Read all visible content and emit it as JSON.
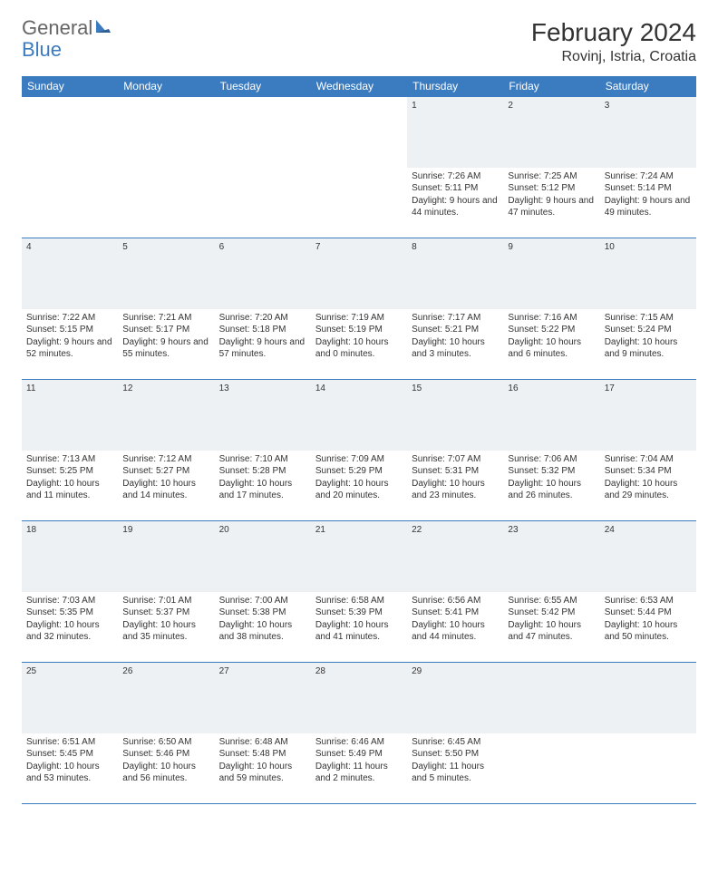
{
  "brand": {
    "word1": "General",
    "word2": "Blue"
  },
  "title": "February 2024",
  "location": "Rovinj, Istria, Croatia",
  "colors": {
    "header_bg": "#3b7bbf",
    "header_text": "#ffffff",
    "daynum_bg": "#eef1f4",
    "border": "#3b7bbf",
    "body_text": "#333333",
    "page_bg": "#ffffff"
  },
  "fonts": {
    "title_size": 28,
    "location_size": 16,
    "weekday_size": 12,
    "cell_size": 10
  },
  "weekdays": [
    "Sunday",
    "Monday",
    "Tuesday",
    "Wednesday",
    "Thursday",
    "Friday",
    "Saturday"
  ],
  "weeks": [
    [
      null,
      null,
      null,
      null,
      {
        "n": "1",
        "sunrise": "Sunrise: 7:26 AM",
        "sunset": "Sunset: 5:11 PM",
        "daylight": "Daylight: 9 hours and 44 minutes."
      },
      {
        "n": "2",
        "sunrise": "Sunrise: 7:25 AM",
        "sunset": "Sunset: 5:12 PM",
        "daylight": "Daylight: 9 hours and 47 minutes."
      },
      {
        "n": "3",
        "sunrise": "Sunrise: 7:24 AM",
        "sunset": "Sunset: 5:14 PM",
        "daylight": "Daylight: 9 hours and 49 minutes."
      }
    ],
    [
      {
        "n": "4",
        "sunrise": "Sunrise: 7:22 AM",
        "sunset": "Sunset: 5:15 PM",
        "daylight": "Daylight: 9 hours and 52 minutes."
      },
      {
        "n": "5",
        "sunrise": "Sunrise: 7:21 AM",
        "sunset": "Sunset: 5:17 PM",
        "daylight": "Daylight: 9 hours and 55 minutes."
      },
      {
        "n": "6",
        "sunrise": "Sunrise: 7:20 AM",
        "sunset": "Sunset: 5:18 PM",
        "daylight": "Daylight: 9 hours and 57 minutes."
      },
      {
        "n": "7",
        "sunrise": "Sunrise: 7:19 AM",
        "sunset": "Sunset: 5:19 PM",
        "daylight": "Daylight: 10 hours and 0 minutes."
      },
      {
        "n": "8",
        "sunrise": "Sunrise: 7:17 AM",
        "sunset": "Sunset: 5:21 PM",
        "daylight": "Daylight: 10 hours and 3 minutes."
      },
      {
        "n": "9",
        "sunrise": "Sunrise: 7:16 AM",
        "sunset": "Sunset: 5:22 PM",
        "daylight": "Daylight: 10 hours and 6 minutes."
      },
      {
        "n": "10",
        "sunrise": "Sunrise: 7:15 AM",
        "sunset": "Sunset: 5:24 PM",
        "daylight": "Daylight: 10 hours and 9 minutes."
      }
    ],
    [
      {
        "n": "11",
        "sunrise": "Sunrise: 7:13 AM",
        "sunset": "Sunset: 5:25 PM",
        "daylight": "Daylight: 10 hours and 11 minutes."
      },
      {
        "n": "12",
        "sunrise": "Sunrise: 7:12 AM",
        "sunset": "Sunset: 5:27 PM",
        "daylight": "Daylight: 10 hours and 14 minutes."
      },
      {
        "n": "13",
        "sunrise": "Sunrise: 7:10 AM",
        "sunset": "Sunset: 5:28 PM",
        "daylight": "Daylight: 10 hours and 17 minutes."
      },
      {
        "n": "14",
        "sunrise": "Sunrise: 7:09 AM",
        "sunset": "Sunset: 5:29 PM",
        "daylight": "Daylight: 10 hours and 20 minutes."
      },
      {
        "n": "15",
        "sunrise": "Sunrise: 7:07 AM",
        "sunset": "Sunset: 5:31 PM",
        "daylight": "Daylight: 10 hours and 23 minutes."
      },
      {
        "n": "16",
        "sunrise": "Sunrise: 7:06 AM",
        "sunset": "Sunset: 5:32 PM",
        "daylight": "Daylight: 10 hours and 26 minutes."
      },
      {
        "n": "17",
        "sunrise": "Sunrise: 7:04 AM",
        "sunset": "Sunset: 5:34 PM",
        "daylight": "Daylight: 10 hours and 29 minutes."
      }
    ],
    [
      {
        "n": "18",
        "sunrise": "Sunrise: 7:03 AM",
        "sunset": "Sunset: 5:35 PM",
        "daylight": "Daylight: 10 hours and 32 minutes."
      },
      {
        "n": "19",
        "sunrise": "Sunrise: 7:01 AM",
        "sunset": "Sunset: 5:37 PM",
        "daylight": "Daylight: 10 hours and 35 minutes."
      },
      {
        "n": "20",
        "sunrise": "Sunrise: 7:00 AM",
        "sunset": "Sunset: 5:38 PM",
        "daylight": "Daylight: 10 hours and 38 minutes."
      },
      {
        "n": "21",
        "sunrise": "Sunrise: 6:58 AM",
        "sunset": "Sunset: 5:39 PM",
        "daylight": "Daylight: 10 hours and 41 minutes."
      },
      {
        "n": "22",
        "sunrise": "Sunrise: 6:56 AM",
        "sunset": "Sunset: 5:41 PM",
        "daylight": "Daylight: 10 hours and 44 minutes."
      },
      {
        "n": "23",
        "sunrise": "Sunrise: 6:55 AM",
        "sunset": "Sunset: 5:42 PM",
        "daylight": "Daylight: 10 hours and 47 minutes."
      },
      {
        "n": "24",
        "sunrise": "Sunrise: 6:53 AM",
        "sunset": "Sunset: 5:44 PM",
        "daylight": "Daylight: 10 hours and 50 minutes."
      }
    ],
    [
      {
        "n": "25",
        "sunrise": "Sunrise: 6:51 AM",
        "sunset": "Sunset: 5:45 PM",
        "daylight": "Daylight: 10 hours and 53 minutes."
      },
      {
        "n": "26",
        "sunrise": "Sunrise: 6:50 AM",
        "sunset": "Sunset: 5:46 PM",
        "daylight": "Daylight: 10 hours and 56 minutes."
      },
      {
        "n": "27",
        "sunrise": "Sunrise: 6:48 AM",
        "sunset": "Sunset: 5:48 PM",
        "daylight": "Daylight: 10 hours and 59 minutes."
      },
      {
        "n": "28",
        "sunrise": "Sunrise: 6:46 AM",
        "sunset": "Sunset: 5:49 PM",
        "daylight": "Daylight: 11 hours and 2 minutes."
      },
      {
        "n": "29",
        "sunrise": "Sunrise: 6:45 AM",
        "sunset": "Sunset: 5:50 PM",
        "daylight": "Daylight: 11 hours and 5 minutes."
      },
      null,
      null
    ]
  ]
}
